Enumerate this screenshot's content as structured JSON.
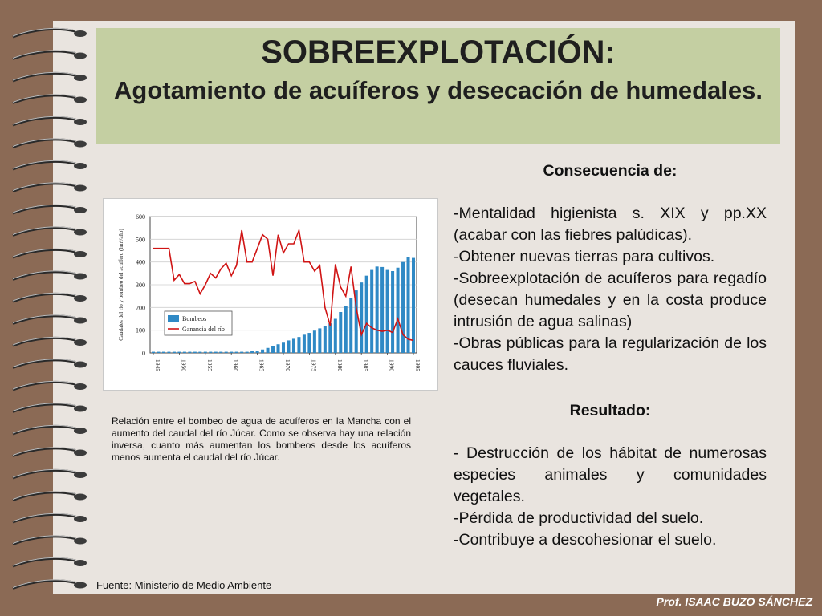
{
  "title": {
    "main": "SOBREEXPLOTACIÓN:",
    "sub": "Agotamiento de acuíferos y desecación de humedales."
  },
  "chart_data": {
    "type": "bar",
    "x": [
      1945,
      1946,
      1947,
      1948,
      1949,
      1950,
      1951,
      1952,
      1953,
      1954,
      1955,
      1956,
      1957,
      1958,
      1959,
      1960,
      1961,
      1962,
      1963,
      1964,
      1965,
      1966,
      1967,
      1968,
      1969,
      1970,
      1971,
      1972,
      1973,
      1974,
      1975,
      1976,
      1977,
      1978,
      1979,
      1980,
      1981,
      1982,
      1983,
      1984,
      1985,
      1986,
      1987,
      1988,
      1989,
      1990,
      1991,
      1992,
      1993,
      1994,
      1995
    ],
    "x_tick_labels": [
      "1945",
      "1950",
      "1955",
      "1960",
      "1965",
      "1970",
      "1975",
      "1980",
      "1985",
      "1990",
      "1995"
    ],
    "ylabel": "Caudales del río y bombeo del acuífero (hm³/año)",
    "ylim": [
      0,
      600
    ],
    "y_ticks": [
      0,
      100,
      200,
      300,
      400,
      500,
      600
    ],
    "grid": true,
    "legend_placement": "lower-left",
    "series": [
      {
        "name": "Bombeos",
        "type": "bar",
        "color": "#2f89c5",
        "values": [
          5,
          5,
          5,
          5,
          5,
          5,
          5,
          5,
          5,
          5,
          5,
          5,
          5,
          5,
          5,
          5,
          5,
          5,
          5,
          7,
          10,
          15,
          22,
          30,
          38,
          45,
          55,
          62,
          70,
          80,
          88,
          98,
          108,
          118,
          130,
          150,
          180,
          205,
          240,
          275,
          310,
          340,
          365,
          380,
          378,
          365,
          360,
          375,
          400,
          420,
          418
        ]
      },
      {
        "name": "Ganancia del río",
        "type": "line",
        "color": "#d01414",
        "values": [
          460,
          460,
          460,
          460,
          320,
          345,
          305,
          305,
          315,
          260,
          300,
          350,
          330,
          370,
          395,
          340,
          385,
          540,
          400,
          400,
          460,
          520,
          500,
          340,
          520,
          440,
          480,
          480,
          540,
          400,
          400,
          360,
          385,
          200,
          120,
          390,
          290,
          250,
          380,
          200,
          80,
          130,
          110,
          100,
          95,
          100,
          90,
          150,
          80,
          60,
          55
        ]
      }
    ]
  },
  "caption": "Relación entre el bombeo de agua de acuíferos en la Mancha con el aumento del caudal del río Júcar. Como se observa hay una relación inversa, cuanto más aumentan los bombeos desde los acuíferos menos aumenta el caudal del río Júcar.",
  "source": "Fuente: Ministerio de Medio Ambiente",
  "consecuencia": {
    "heading": "Consecuencia de:",
    "items": [
      "-Mentalidad higienista s. XIX y pp.XX (acabar con las fiebres palúdicas).",
      "-Obtener nuevas tierras para cultivos.",
      "-Sobreexplotación de acuíferos para regadío (desecan humedales y en la costa produce intrusión de agua salinas)",
      "-Obras públicas para la regularización de los cauces fluviales."
    ]
  },
  "resultado": {
    "heading": "Resultado:",
    "items": [
      "- Destrucción de los hábitat de numerosas especies animales y comunidades vegetales.",
      "-Pérdida de productividad del suelo.",
      "-Contribuye a descohesionar el suelo."
    ]
  },
  "footer": "Prof. ISAAC BUZO SÁNCHEZ"
}
